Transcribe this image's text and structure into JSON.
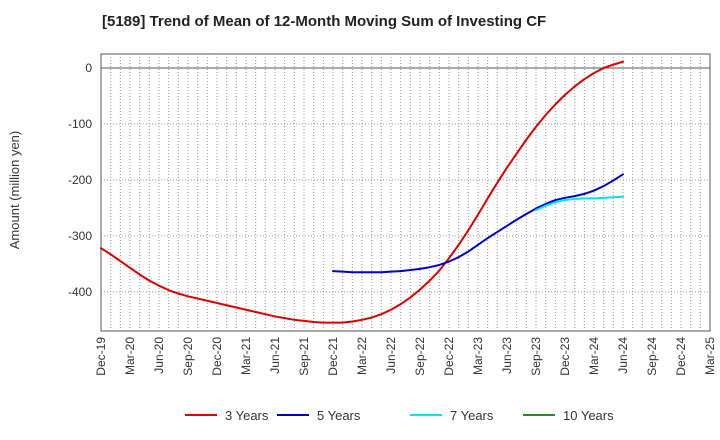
{
  "chart_data": {
    "type": "line",
    "title": "[5189]  Trend of Mean of 12-Month Moving Sum of Investing CF",
    "ylabel": "Amount (million yen)",
    "xlabel": "",
    "ylim": [
      -470,
      25
    ],
    "yticks": [
      0,
      -100,
      -200,
      -300,
      -400
    ],
    "x_start": "Dec-19",
    "x_end": "Mar-25",
    "x_tick_labels": [
      "Dec-19",
      "Mar-20",
      "Jun-20",
      "Sep-20",
      "Dec-20",
      "Mar-21",
      "Jun-21",
      "Sep-21",
      "Dec-21",
      "Mar-22",
      "Jun-22",
      "Sep-22",
      "Dec-22",
      "Mar-23",
      "Jun-23",
      "Sep-23",
      "Dec-23",
      "Mar-24",
      "Jun-24",
      "Sep-24",
      "Dec-24",
      "Mar-25"
    ],
    "grid": true,
    "legend_position": "bottom",
    "series": [
      {
        "name": "3 Years",
        "color": "#dd0000",
        "points": [
          [
            0,
            -322
          ],
          [
            1,
            -333
          ],
          [
            2,
            -345
          ],
          [
            3,
            -357
          ],
          [
            4,
            -369
          ],
          [
            5,
            -380
          ],
          [
            6,
            -389
          ],
          [
            7,
            -397
          ],
          [
            8,
            -403
          ],
          [
            9,
            -408
          ],
          [
            10,
            -412
          ],
          [
            11,
            -416
          ],
          [
            12,
            -420
          ],
          [
            13,
            -424
          ],
          [
            14,
            -428
          ],
          [
            15,
            -432
          ],
          [
            16,
            -436
          ],
          [
            17,
            -440
          ],
          [
            18,
            -444
          ],
          [
            19,
            -447
          ],
          [
            20,
            -450
          ],
          [
            21,
            -452
          ],
          [
            22,
            -454
          ],
          [
            23,
            -455
          ],
          [
            24,
            -455
          ],
          [
            25,
            -455
          ],
          [
            26,
            -453
          ],
          [
            27,
            -450
          ],
          [
            28,
            -446
          ],
          [
            29,
            -440
          ],
          [
            30,
            -432
          ],
          [
            31,
            -422
          ],
          [
            32,
            -410
          ],
          [
            33,
            -396
          ],
          [
            34,
            -380
          ],
          [
            35,
            -362
          ],
          [
            36,
            -340
          ],
          [
            37,
            -316
          ],
          [
            38,
            -290
          ],
          [
            39,
            -262
          ],
          [
            40,
            -233
          ],
          [
            41,
            -205
          ],
          [
            42,
            -178
          ],
          [
            43,
            -153
          ],
          [
            44,
            -128
          ],
          [
            45,
            -105
          ],
          [
            46,
            -84
          ],
          [
            47,
            -65
          ],
          [
            48,
            -48
          ],
          [
            49,
            -33
          ],
          [
            50,
            -20
          ],
          [
            51,
            -9
          ],
          [
            52,
            0
          ],
          [
            53,
            6
          ],
          [
            54,
            11
          ]
        ]
      },
      {
        "name": "5 Years",
        "color": "#0000cc",
        "points": [
          [
            24,
            -363
          ],
          [
            25,
            -364
          ],
          [
            26,
            -365
          ],
          [
            27,
            -365
          ],
          [
            28,
            -365
          ],
          [
            29,
            -365
          ],
          [
            30,
            -364
          ],
          [
            31,
            -363
          ],
          [
            32,
            -361
          ],
          [
            33,
            -359
          ],
          [
            34,
            -356
          ],
          [
            35,
            -352
          ],
          [
            36,
            -346
          ],
          [
            37,
            -338
          ],
          [
            38,
            -328
          ],
          [
            39,
            -316
          ],
          [
            40,
            -304
          ],
          [
            41,
            -293
          ],
          [
            42,
            -282
          ],
          [
            43,
            -271
          ],
          [
            44,
            -261
          ],
          [
            45,
            -251
          ],
          [
            46,
            -243
          ],
          [
            47,
            -236
          ],
          [
            48,
            -232
          ],
          [
            49,
            -229
          ],
          [
            50,
            -225
          ],
          [
            51,
            -219
          ],
          [
            52,
            -211
          ],
          [
            53,
            -201
          ],
          [
            54,
            -190
          ]
        ]
      },
      {
        "name": "7 Years",
        "color": "#00e5ee",
        "points": [
          [
            45,
            -254
          ],
          [
            46,
            -246
          ],
          [
            47,
            -240
          ],
          [
            48,
            -236
          ],
          [
            49,
            -234
          ],
          [
            50,
            -233
          ],
          [
            51,
            -233
          ],
          [
            52,
            -232
          ],
          [
            53,
            -231
          ],
          [
            54,
            -230
          ]
        ]
      },
      {
        "name": "10 Years",
        "color": "#228b22",
        "points": []
      }
    ]
  }
}
